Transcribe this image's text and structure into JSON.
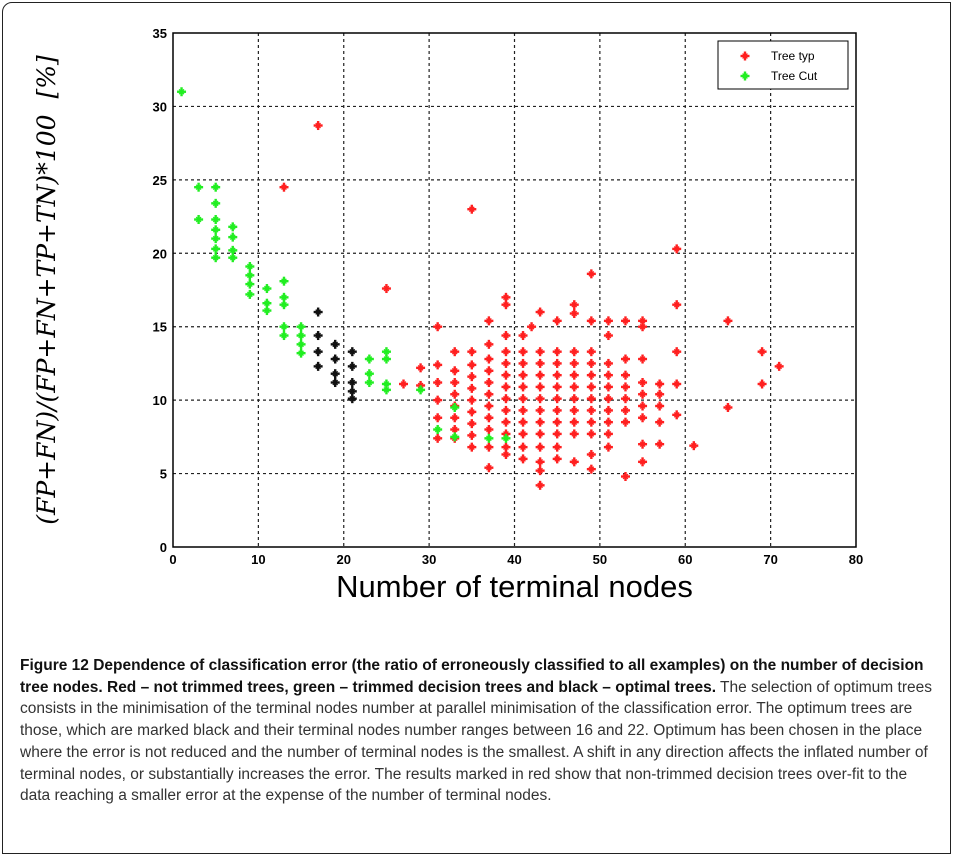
{
  "chart_data": {
    "type": "scatter",
    "xlabel": "Number of terminal nodes",
    "ylabel": "(FP+FN)/(FP+FN+TP+TN)*100",
    "ylabel_unit": "[%]",
    "xlim": [
      0,
      80
    ],
    "ylim": [
      0,
      35
    ],
    "xticks": [
      0,
      10,
      20,
      30,
      40,
      50,
      60,
      70,
      80
    ],
    "yticks": [
      0,
      5,
      10,
      15,
      20,
      25,
      30,
      35
    ],
    "grid": true,
    "legend_position": "top-right",
    "legend": [
      "Tree typ",
      "Tree Cut"
    ],
    "colors": {
      "Tree typ": "#ff2020",
      "Tree Cut": "#22ee22",
      "optimal": "#111111"
    },
    "series": [
      {
        "name": "Tree typ",
        "points": [
          [
            13,
            24.5
          ],
          [
            17,
            28.7
          ],
          [
            25,
            17.6
          ],
          [
            27,
            11.1
          ],
          [
            29,
            12.2
          ],
          [
            29,
            11.0
          ],
          [
            31,
            15.0
          ],
          [
            31,
            12.4
          ],
          [
            31,
            11.2
          ],
          [
            31,
            10.0
          ],
          [
            31,
            8.8
          ],
          [
            31,
            7.4
          ],
          [
            33,
            13.3
          ],
          [
            33,
            12.0
          ],
          [
            33,
            11.2
          ],
          [
            33,
            10.4
          ],
          [
            33,
            9.6
          ],
          [
            33,
            8.8
          ],
          [
            33,
            8.0
          ],
          [
            33,
            7.4
          ],
          [
            35,
            23.0
          ],
          [
            35,
            13.3
          ],
          [
            35,
            12.4
          ],
          [
            35,
            11.6
          ],
          [
            35,
            10.8
          ],
          [
            35,
            10.0
          ],
          [
            35,
            9.2
          ],
          [
            35,
            8.4
          ],
          [
            35,
            7.6
          ],
          [
            35,
            6.8
          ],
          [
            37,
            15.4
          ],
          [
            37,
            13.8
          ],
          [
            37,
            12.8
          ],
          [
            37,
            12.0
          ],
          [
            37,
            11.2
          ],
          [
            37,
            10.4
          ],
          [
            37,
            9.6
          ],
          [
            37,
            8.8
          ],
          [
            37,
            8.0
          ],
          [
            37,
            6.8
          ],
          [
            37,
            5.4
          ],
          [
            39,
            17.0
          ],
          [
            39,
            16.5
          ],
          [
            39,
            14.4
          ],
          [
            39,
            13.3
          ],
          [
            39,
            12.5
          ],
          [
            39,
            11.7
          ],
          [
            39,
            10.9
          ],
          [
            39,
            10.1
          ],
          [
            39,
            9.3
          ],
          [
            39,
            8.5
          ],
          [
            39,
            7.7
          ],
          [
            39,
            6.8
          ],
          [
            39,
            6.3
          ],
          [
            41,
            14.4
          ],
          [
            41,
            13.3
          ],
          [
            41,
            12.5
          ],
          [
            41,
            11.7
          ],
          [
            41,
            10.9
          ],
          [
            41,
            10.1
          ],
          [
            41,
            9.3
          ],
          [
            41,
            8.5
          ],
          [
            41,
            7.7
          ],
          [
            41,
            6.8
          ],
          [
            41,
            6.0
          ],
          [
            42,
            15.0
          ],
          [
            43,
            16.0
          ],
          [
            43,
            13.3
          ],
          [
            43,
            12.5
          ],
          [
            43,
            11.7
          ],
          [
            43,
            10.9
          ],
          [
            43,
            10.1
          ],
          [
            43,
            9.3
          ],
          [
            43,
            8.5
          ],
          [
            43,
            7.7
          ],
          [
            43,
            6.8
          ],
          [
            43,
            5.8
          ],
          [
            43,
            5.2
          ],
          [
            43,
            4.2
          ],
          [
            45,
            15.4
          ],
          [
            45,
            13.3
          ],
          [
            45,
            12.5
          ],
          [
            45,
            11.7
          ],
          [
            45,
            10.9
          ],
          [
            45,
            10.1
          ],
          [
            45,
            9.3
          ],
          [
            45,
            8.5
          ],
          [
            45,
            7.7
          ],
          [
            45,
            6.8
          ],
          [
            45,
            6.0
          ],
          [
            47,
            16.5
          ],
          [
            47,
            15.9
          ],
          [
            47,
            13.3
          ],
          [
            47,
            12.5
          ],
          [
            47,
            11.7
          ],
          [
            47,
            10.9
          ],
          [
            47,
            10.1
          ],
          [
            47,
            9.3
          ],
          [
            47,
            8.5
          ],
          [
            47,
            7.7
          ],
          [
            47,
            5.8
          ],
          [
            49,
            18.6
          ],
          [
            49,
            15.4
          ],
          [
            49,
            13.3
          ],
          [
            49,
            12.5
          ],
          [
            49,
            11.7
          ],
          [
            49,
            10.9
          ],
          [
            49,
            10.1
          ],
          [
            49,
            9.3
          ],
          [
            49,
            8.5
          ],
          [
            49,
            7.7
          ],
          [
            49,
            6.3
          ],
          [
            49,
            5.3
          ],
          [
            51,
            15.4
          ],
          [
            51,
            14.4
          ],
          [
            51,
            12.5
          ],
          [
            51,
            11.7
          ],
          [
            51,
            10.9
          ],
          [
            51,
            10.1
          ],
          [
            51,
            9.3
          ],
          [
            51,
            8.5
          ],
          [
            51,
            7.7
          ],
          [
            51,
            6.8
          ],
          [
            53,
            15.4
          ],
          [
            53,
            12.8
          ],
          [
            53,
            11.7
          ],
          [
            53,
            10.9
          ],
          [
            53,
            10.1
          ],
          [
            53,
            9.3
          ],
          [
            53,
            8.5
          ],
          [
            53,
            4.8
          ],
          [
            55,
            15.4
          ],
          [
            55,
            15.0
          ],
          [
            55,
            12.8
          ],
          [
            55,
            11.2
          ],
          [
            55,
            10.4
          ],
          [
            55,
            9.6
          ],
          [
            55,
            8.8
          ],
          [
            55,
            7.0
          ],
          [
            55,
            5.8
          ],
          [
            57,
            11.1
          ],
          [
            57,
            10.4
          ],
          [
            57,
            9.6
          ],
          [
            57,
            8.5
          ],
          [
            57,
            7.0
          ],
          [
            59,
            20.3
          ],
          [
            59,
            16.5
          ],
          [
            59,
            13.3
          ],
          [
            59,
            11.1
          ],
          [
            59,
            9.0
          ],
          [
            61,
            6.9
          ],
          [
            65,
            15.4
          ],
          [
            65,
            9.5
          ],
          [
            69,
            13.3
          ],
          [
            69,
            11.1
          ],
          [
            71,
            12.3
          ]
        ]
      },
      {
        "name": "Tree Cut",
        "points": [
          [
            1,
            31.0
          ],
          [
            3,
            24.5
          ],
          [
            3,
            22.3
          ],
          [
            5,
            24.5
          ],
          [
            5,
            23.4
          ],
          [
            5,
            22.3
          ],
          [
            5,
            21.6
          ],
          [
            5,
            21.0
          ],
          [
            5,
            20.3
          ],
          [
            5,
            19.7
          ],
          [
            7,
            21.8
          ],
          [
            7,
            21.1
          ],
          [
            7,
            20.2
          ],
          [
            7,
            19.7
          ],
          [
            9,
            19.1
          ],
          [
            9,
            18.5
          ],
          [
            9,
            17.9
          ],
          [
            9,
            17.2
          ],
          [
            11,
            17.6
          ],
          [
            11,
            16.6
          ],
          [
            11,
            16.1
          ],
          [
            13,
            18.1
          ],
          [
            13,
            17.0
          ],
          [
            13,
            16.5
          ],
          [
            13,
            15.0
          ],
          [
            13,
            14.4
          ],
          [
            15,
            15.0
          ],
          [
            15,
            14.4
          ],
          [
            15,
            13.8
          ],
          [
            15,
            13.2
          ],
          [
            23,
            12.8
          ],
          [
            23,
            11.8
          ],
          [
            23,
            11.2
          ],
          [
            25,
            13.3
          ],
          [
            25,
            12.8
          ],
          [
            25,
            11.1
          ],
          [
            25,
            10.7
          ],
          [
            29,
            10.7
          ],
          [
            31,
            8.0
          ],
          [
            33,
            9.5
          ],
          [
            33,
            7.5
          ],
          [
            37,
            7.4
          ],
          [
            39,
            7.4
          ]
        ]
      },
      {
        "name": "",
        "points": [
          [
            17,
            16.0
          ],
          [
            17,
            14.4
          ],
          [
            17,
            13.3
          ],
          [
            17,
            12.3
          ],
          [
            19,
            13.8
          ],
          [
            19,
            12.8
          ],
          [
            19,
            11.8
          ],
          [
            19,
            11.2
          ],
          [
            21,
            13.3
          ],
          [
            21,
            12.3
          ],
          [
            21,
            11.2
          ],
          [
            21,
            10.6
          ],
          [
            21,
            10.1
          ]
        ]
      }
    ]
  },
  "caption": {
    "title": "Figure 12 Dependence of classification error (the ratio of erroneously classified to all examples) on the number of decision tree nodes. Red – not trimmed trees, green – trimmed decision trees and black – optimal trees.",
    "body": " The selection of optimum trees consists in the minimisation of the terminal nodes number at parallel minimisation of the classification error. The optimum trees are those, which are marked black and their terminal nodes number ranges between 16 and 22. Optimum has been chosen in the place where the error is not reduced and the number of terminal nodes is the smallest. A shift in any direction affects the inflated number of terminal nodes, or substantially increases the error. The results marked in red show that non-trimmed decision trees over-fit to the data reaching a smaller error at the expense of the number of terminal nodes."
  }
}
